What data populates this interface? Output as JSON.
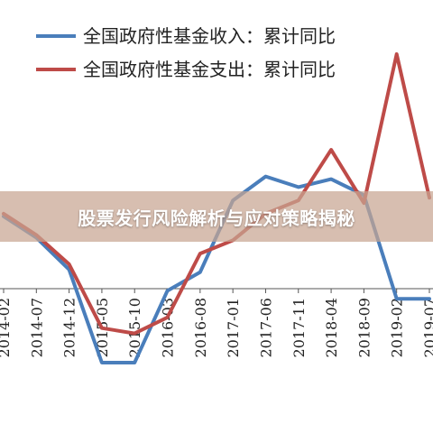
{
  "overlay": {
    "title": "股票发行风险解析与应对策略揭秘"
  },
  "chart_data": {
    "type": "line",
    "legend_position": "top-left",
    "grid": false,
    "colors": {
      "income": "#4a7ebb",
      "expenditure": "#be4b48"
    },
    "categories": [
      "2014-02",
      "2014-07",
      "2014-12",
      "2015-05",
      "2015-10",
      "2016-03",
      "2016-08",
      "2017-01",
      "2017-06",
      "2017-11",
      "2018-04",
      "2018-09",
      "2019-02",
      "2019-07"
    ],
    "series": [
      {
        "name": "全国政府性基金收入：累计同比",
        "key": "income",
        "values": [
          0.9,
          0.1,
          -1.1,
          -4.6,
          -4.6,
          -1.9,
          -1.2,
          1.5,
          2.4,
          2.0,
          2.3,
          1.7,
          -2.2,
          -2.2
        ]
      },
      {
        "name": "全国政府性基金支出：累计同比",
        "key": "expenditure",
        "values": [
          1.0,
          0.2,
          -0.9,
          -3.3,
          -3.5,
          -2.9,
          -0.5,
          0.0,
          1.0,
          1.5,
          3.4,
          1.4,
          7.0,
          1.6
        ]
      }
    ]
  }
}
